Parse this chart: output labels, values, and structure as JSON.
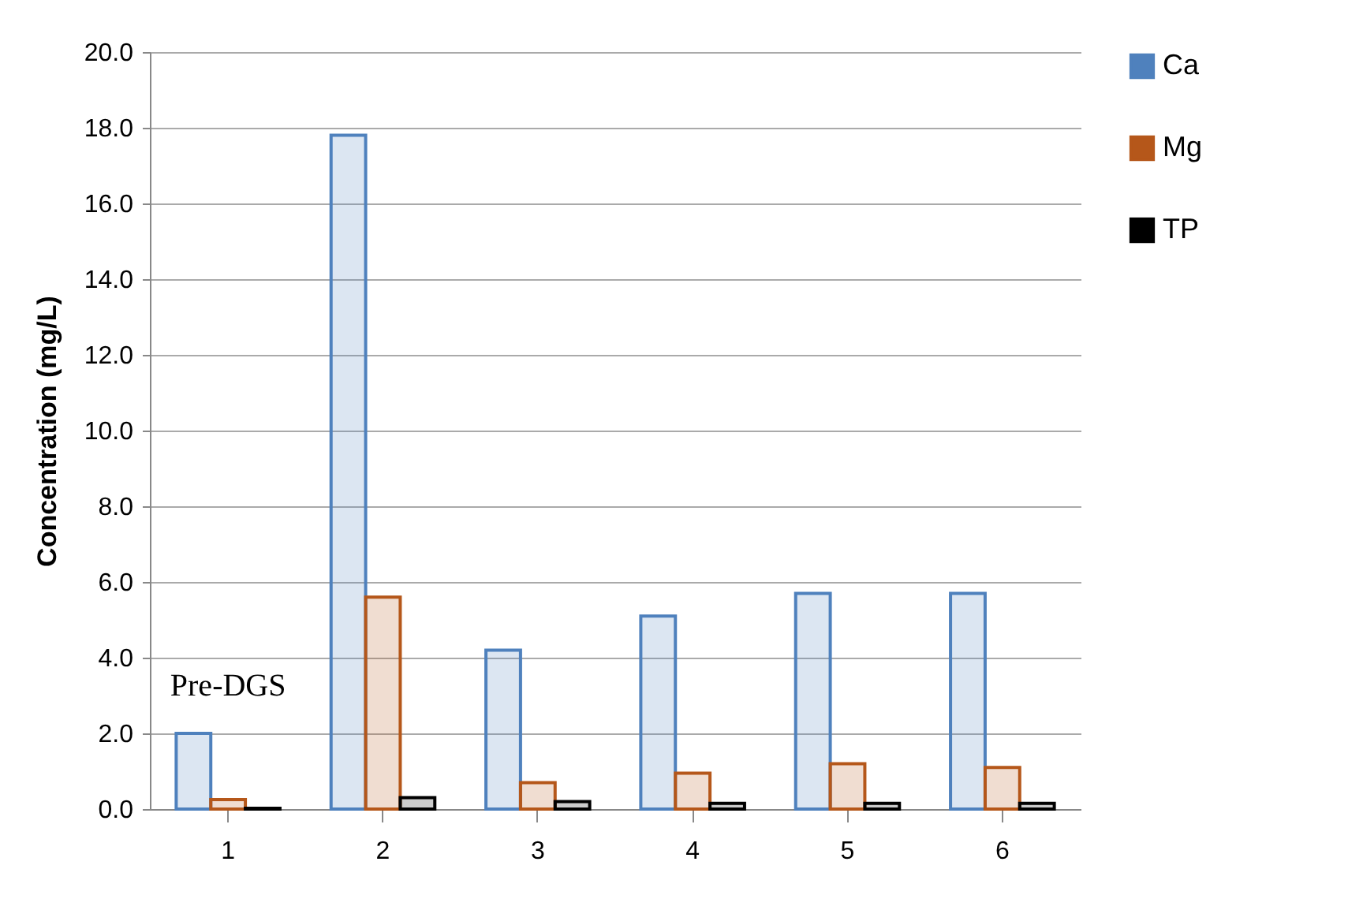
{
  "chart_data": {
    "type": "bar",
    "ylabel": "Concentration (mg/L)",
    "categories": [
      "1",
      "2",
      "3",
      "4",
      "5",
      "6"
    ],
    "series": [
      {
        "name": "Ca",
        "color": "#4f81bd",
        "values": [
          2.0,
          17.8,
          4.2,
          5.1,
          5.7,
          5.7
        ]
      },
      {
        "name": "Mg",
        "color": "#b5571a",
        "values": [
          0.25,
          5.6,
          0.7,
          0.95,
          1.2,
          1.1
        ]
      },
      {
        "name": "TP",
        "color": "#000000",
        "values": [
          0.02,
          0.3,
          0.2,
          0.15,
          0.15,
          0.15
        ]
      }
    ],
    "ylim": [
      0,
      20
    ],
    "yticks": [
      {
        "value": 0,
        "label": "0.0"
      },
      {
        "value": 2,
        "label": "2.0"
      },
      {
        "value": 4,
        "label": "4.0"
      },
      {
        "value": 6,
        "label": "6.0"
      },
      {
        "value": 8,
        "label": "8.0"
      },
      {
        "value": 10,
        "label": "10.0"
      },
      {
        "value": 12,
        "label": "12.0"
      },
      {
        "value": 14,
        "label": "14.0"
      },
      {
        "value": 16,
        "label": "16.0"
      },
      {
        "value": 18,
        "label": "18.0"
      },
      {
        "value": 20,
        "label": "20.0"
      }
    ],
    "grid": "y",
    "legend": "right",
    "annotations": [
      "Pre-DGS"
    ]
  }
}
